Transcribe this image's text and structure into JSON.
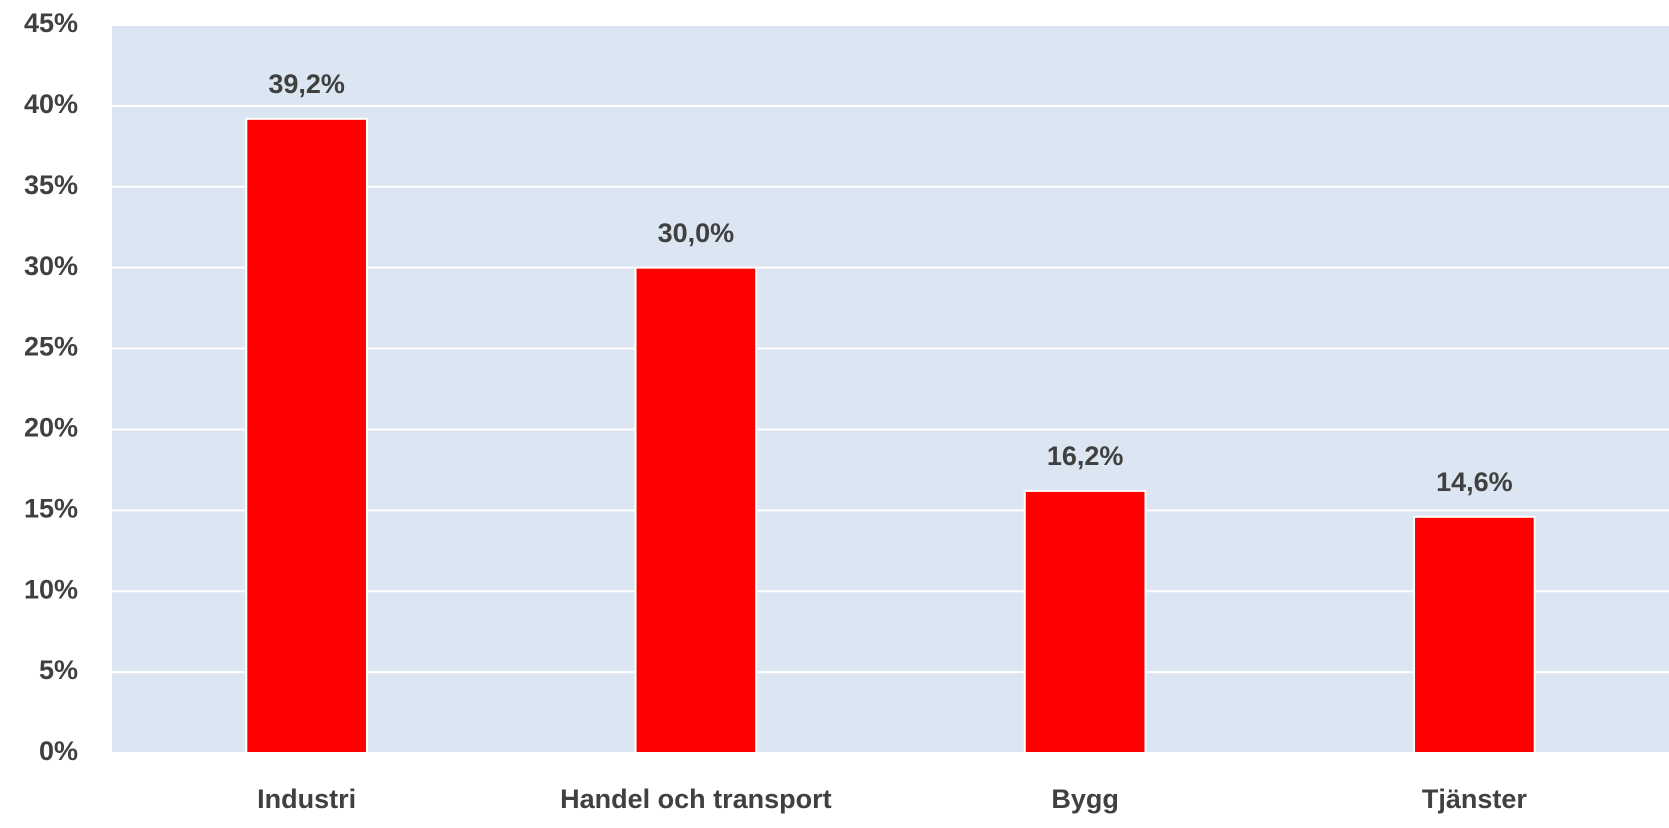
{
  "chart_data": {
    "type": "bar",
    "categories": [
      "Industri",
      "Handel och transport",
      "Bygg",
      "Tjänster"
    ],
    "values": [
      39.2,
      30.0,
      16.2,
      14.6
    ],
    "value_labels": [
      "39,2%",
      "30,0%",
      "16,2%",
      "14,6%"
    ],
    "color": "#ff0000",
    "ylim": [
      0,
      45
    ],
    "yticks": [
      {
        "value": 0,
        "label": "0%"
      },
      {
        "value": 5,
        "label": "5%"
      },
      {
        "value": 10,
        "label": "10%"
      },
      {
        "value": 15,
        "label": "15%"
      },
      {
        "value": 20,
        "label": "20%"
      },
      {
        "value": 25,
        "label": "25%"
      },
      {
        "value": 30,
        "label": "30%"
      },
      {
        "value": 35,
        "label": "35%"
      },
      {
        "value": 40,
        "label": "40%"
      },
      {
        "value": 45,
        "label": "45%"
      }
    ],
    "grid": true
  }
}
